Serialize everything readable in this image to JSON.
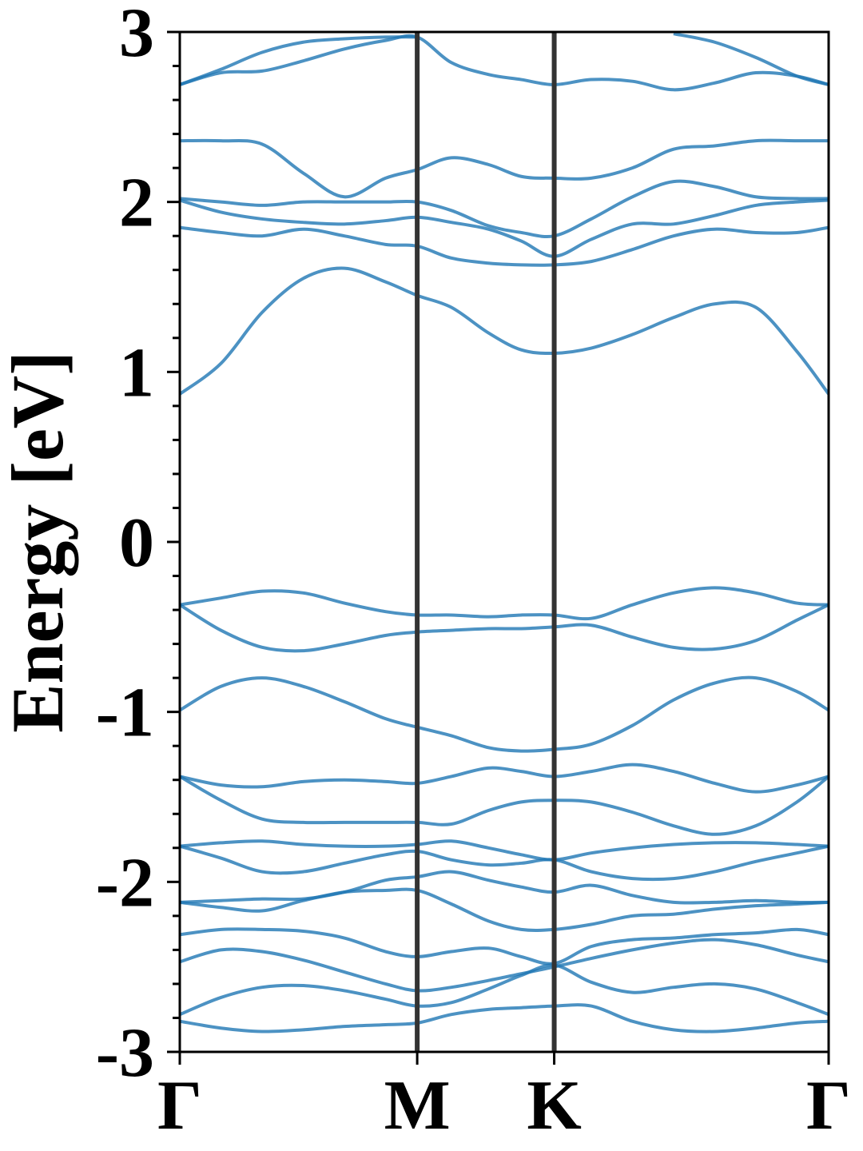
{
  "chart_data": {
    "type": "line",
    "ylabel": "Energy [eV]",
    "color": "#1f77b4",
    "xlim": [
      0,
      1.577
    ],
    "xticks": [
      {
        "value": 0,
        "label": "Γ"
      },
      {
        "value": 0.577,
        "label": "M"
      },
      {
        "value": 0.91,
        "label": "K"
      },
      {
        "value": 1.577,
        "label": "Γ"
      }
    ],
    "ylim": [
      -3,
      3
    ],
    "yticks": [
      -3,
      -2,
      -1,
      0,
      1,
      2,
      3
    ],
    "yminorticks": [
      -2.8,
      -2.6,
      -2.4,
      -2.2,
      -1.8,
      -1.6,
      -1.4,
      -1.2,
      -0.8,
      -0.6,
      -0.4,
      -0.2,
      0.2,
      0.4,
      0.6,
      0.8,
      1.2,
      1.4,
      1.6,
      1.8,
      2.2,
      2.4,
      2.6,
      2.8
    ],
    "x": [
      0,
      0.1,
      0.2,
      0.3,
      0.4,
      0.5,
      0.577,
      0.66,
      0.75,
      0.83,
      0.91,
      1.0,
      1.1,
      1.2,
      1.3,
      1.4,
      1.5,
      1.577
    ],
    "series": [
      {
        "values": [
          0.87,
          1.05,
          1.35,
          1.55,
          1.61,
          1.53,
          1.45,
          1.38,
          1.23,
          1.13,
          1.11,
          1.14,
          1.22,
          1.32,
          1.4,
          1.38,
          1.12,
          0.87
        ]
      },
      {
        "values": [
          1.85,
          1.82,
          1.8,
          1.84,
          1.8,
          1.75,
          1.74,
          1.67,
          1.64,
          1.63,
          1.63,
          1.65,
          1.72,
          1.8,
          1.84,
          1.82,
          1.82,
          1.85
        ]
      },
      {
        "values": [
          2.01,
          1.94,
          1.9,
          1.88,
          1.87,
          1.89,
          1.91,
          1.88,
          1.84,
          1.77,
          1.68,
          1.78,
          1.87,
          1.87,
          1.92,
          1.98,
          2.0,
          2.01
        ]
      },
      {
        "values": [
          2.02,
          2.0,
          1.98,
          2.0,
          2.0,
          2.0,
          2.0,
          1.95,
          1.86,
          1.82,
          1.8,
          1.9,
          2.03,
          2.12,
          2.09,
          2.03,
          2.02,
          2.02
        ]
      },
      {
        "values": [
          2.36,
          2.36,
          2.34,
          2.17,
          2.03,
          2.14,
          2.19,
          2.26,
          2.22,
          2.15,
          2.14,
          2.14,
          2.2,
          2.31,
          2.33,
          2.36,
          2.36,
          2.36
        ]
      },
      {
        "values": [
          2.69,
          2.76,
          2.77,
          2.83,
          2.9,
          2.95,
          2.97,
          2.82,
          2.75,
          2.72,
          2.69,
          2.72,
          2.71,
          2.66,
          2.7,
          2.76,
          2.74,
          2.69
        ]
      },
      {
        "values": [
          2.69,
          2.78,
          2.88,
          2.94,
          2.96,
          2.97,
          2.97,
          null,
          null,
          null,
          null,
          null,
          null,
          2.99,
          2.94,
          2.85,
          2.74,
          2.69
        ]
      },
      {
        "values": [
          -0.37,
          -0.33,
          -0.29,
          -0.3,
          -0.36,
          -0.41,
          -0.43,
          -0.43,
          -0.44,
          -0.43,
          -0.43,
          -0.45,
          -0.37,
          -0.3,
          -0.27,
          -0.3,
          -0.36,
          -0.37
        ]
      },
      {
        "values": [
          -0.37,
          -0.52,
          -0.62,
          -0.64,
          -0.6,
          -0.55,
          -0.53,
          -0.52,
          -0.51,
          -0.51,
          -0.5,
          -0.49,
          -0.56,
          -0.62,
          -0.63,
          -0.58,
          -0.46,
          -0.37
        ]
      },
      {
        "values": [
          -0.99,
          -0.85,
          -0.8,
          -0.85,
          -0.94,
          -1.04,
          -1.09,
          -1.14,
          -1.21,
          -1.23,
          -1.22,
          -1.19,
          -1.08,
          -0.93,
          -0.83,
          -0.8,
          -0.88,
          -0.99
        ]
      },
      {
        "values": [
          -1.38,
          -1.43,
          -1.44,
          -1.41,
          -1.4,
          -1.41,
          -1.42,
          -1.38,
          -1.33,
          -1.35,
          -1.38,
          -1.35,
          -1.31,
          -1.35,
          -1.42,
          -1.47,
          -1.43,
          -1.38
        ]
      },
      {
        "values": [
          -1.38,
          -1.52,
          -1.63,
          -1.65,
          -1.65,
          -1.65,
          -1.65,
          -1.66,
          -1.58,
          -1.53,
          -1.52,
          -1.53,
          -1.59,
          -1.67,
          -1.72,
          -1.67,
          -1.53,
          -1.38
        ]
      },
      {
        "values": [
          -1.79,
          -1.77,
          -1.76,
          -1.78,
          -1.79,
          -1.79,
          -1.78,
          -1.76,
          -1.8,
          -1.84,
          -1.87,
          -1.83,
          -1.8,
          -1.78,
          -1.77,
          -1.77,
          -1.78,
          -1.79
        ]
      },
      {
        "values": [
          -1.79,
          -1.86,
          -1.94,
          -1.94,
          -1.89,
          -1.84,
          -1.82,
          -1.87,
          -1.9,
          -1.89,
          -1.87,
          -1.94,
          -1.98,
          -1.98,
          -1.94,
          -1.88,
          -1.83,
          -1.79
        ]
      },
      {
        "values": [
          -2.12,
          -2.11,
          -2.1,
          -2.1,
          -2.06,
          -1.99,
          -1.97,
          -1.94,
          -1.99,
          -2.03,
          -2.06,
          -2.02,
          -2.08,
          -2.12,
          -2.12,
          -2.11,
          -2.12,
          -2.12
        ]
      },
      {
        "values": [
          -2.12,
          -2.15,
          -2.17,
          -2.11,
          -2.06,
          -2.05,
          -2.05,
          -2.13,
          -2.23,
          -2.28,
          -2.28,
          -2.25,
          -2.2,
          -2.19,
          -2.16,
          -2.14,
          -2.13,
          -2.12
        ]
      },
      {
        "values": [
          -2.31,
          -2.28,
          -2.28,
          -2.29,
          -2.33,
          -2.41,
          -2.44,
          -2.41,
          -2.39,
          -2.44,
          -2.48,
          -2.38,
          -2.34,
          -2.33,
          -2.31,
          -2.3,
          -2.28,
          -2.31
        ]
      },
      {
        "values": [
          -2.47,
          -2.4,
          -2.41,
          -2.46,
          -2.53,
          -2.6,
          -2.64,
          -2.62,
          -2.58,
          -2.54,
          -2.5,
          -2.45,
          -2.4,
          -2.36,
          -2.34,
          -2.37,
          -2.43,
          -2.47
        ]
      },
      {
        "values": [
          -2.78,
          -2.68,
          -2.62,
          -2.61,
          -2.64,
          -2.69,
          -2.73,
          -2.71,
          -2.63,
          -2.55,
          -2.49,
          -2.59,
          -2.65,
          -2.62,
          -2.6,
          -2.63,
          -2.71,
          -2.78
        ]
      },
      {
        "values": [
          -2.82,
          -2.86,
          -2.88,
          -2.87,
          -2.85,
          -2.84,
          -2.83,
          -2.78,
          -2.75,
          -2.74,
          -2.73,
          -2.73,
          -2.82,
          -2.87,
          -2.88,
          -2.86,
          -2.83,
          -2.82
        ]
      }
    ]
  }
}
